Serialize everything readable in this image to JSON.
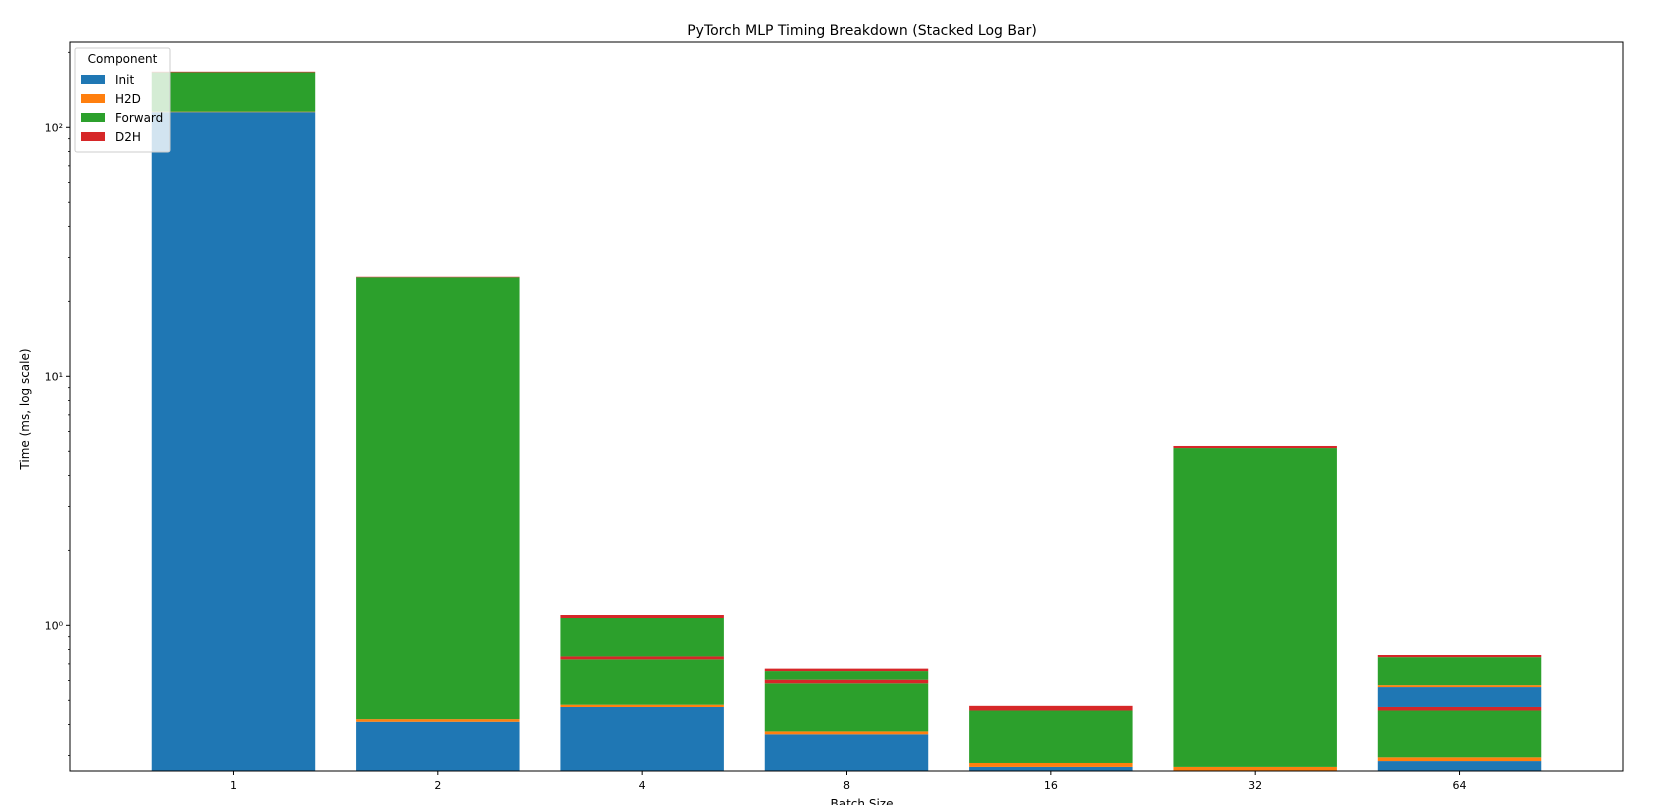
{
  "chart_data": {
    "type": "bar",
    "stacked": true,
    "title": "PyTorch MLP Timing Breakdown (Stacked Log Bar)",
    "xlabel": "Batch Size",
    "ylabel": "Time (ms, log scale)",
    "yscale": "log",
    "ylim": [
      0.26,
      220
    ],
    "yticks": [
      {
        "value": 1,
        "label": "10⁰"
      },
      {
        "value": 10,
        "label": "10¹"
      },
      {
        "value": 100,
        "label": "10²"
      }
    ],
    "categories": [
      "1",
      "2",
      "4",
      "8",
      "16",
      "32",
      "64"
    ],
    "legend": {
      "title": "Component",
      "placement": "top-left"
    },
    "colors": {
      "Init": "#1f77b4",
      "H2D": "#ff7f0e",
      "Forward": "#2ca02c",
      "D2H": "#d62728"
    },
    "bars": [
      {
        "category": "1",
        "segments": [
          {
            "series": "Init",
            "bottom": 0.26,
            "top": 115
          },
          {
            "series": "H2D",
            "bottom": 115,
            "top": 115.5
          },
          {
            "series": "Forward",
            "bottom": 115.5,
            "top": 166
          },
          {
            "series": "D2H",
            "bottom": 166,
            "top": 167
          }
        ]
      },
      {
        "category": "2",
        "segments": [
          {
            "series": "Init",
            "bottom": 0.26,
            "top": 0.41
          },
          {
            "series": "H2D",
            "bottom": 0.41,
            "top": 0.42
          },
          {
            "series": "Forward",
            "bottom": 0.42,
            "top": 25.0
          },
          {
            "series": "D2H",
            "bottom": 25.0,
            "top": 25.1
          }
        ]
      },
      {
        "category": "4",
        "segments": [
          {
            "series": "Init",
            "bottom": 0.26,
            "top": 0.47
          },
          {
            "series": "H2D",
            "bottom": 0.47,
            "top": 0.48
          },
          {
            "series": "Forward",
            "bottom": 0.48,
            "top": 0.73
          },
          {
            "series": "D2H",
            "bottom": 0.73,
            "top": 0.75
          },
          {
            "series": "Forward",
            "bottom": 0.75,
            "top": 1.07
          },
          {
            "series": "D2H",
            "bottom": 1.07,
            "top": 1.1
          }
        ]
      },
      {
        "category": "8",
        "segments": [
          {
            "series": "Init",
            "bottom": 0.26,
            "top": 0.365
          },
          {
            "series": "H2D",
            "bottom": 0.365,
            "top": 0.375
          },
          {
            "series": "Forward",
            "bottom": 0.375,
            "top": 0.585
          },
          {
            "series": "D2H",
            "bottom": 0.585,
            "top": 0.605
          },
          {
            "series": "Forward",
            "bottom": 0.605,
            "top": 0.655
          },
          {
            "series": "D2H",
            "bottom": 0.655,
            "top": 0.67
          }
        ]
      },
      {
        "category": "16",
        "segments": [
          {
            "series": "Init",
            "bottom": 0.26,
            "top": 0.27
          },
          {
            "series": "H2D",
            "bottom": 0.27,
            "top": 0.28
          },
          {
            "series": "Forward",
            "bottom": 0.28,
            "top": 0.455
          },
          {
            "series": "D2H",
            "bottom": 0.455,
            "top": 0.475
          }
        ]
      },
      {
        "category": "32",
        "segments": [
          {
            "series": "H2D",
            "bottom": 0.26,
            "top": 0.27
          },
          {
            "series": "Forward",
            "bottom": 0.27,
            "top": 5.15
          },
          {
            "series": "D2H",
            "bottom": 5.15,
            "top": 5.25
          }
        ]
      },
      {
        "category": "64",
        "segments": [
          {
            "series": "Init",
            "bottom": 0.26,
            "top": 0.285
          },
          {
            "series": "H2D",
            "bottom": 0.285,
            "top": 0.295
          },
          {
            "series": "Forward",
            "bottom": 0.295,
            "top": 0.455
          },
          {
            "series": "D2H",
            "bottom": 0.455,
            "top": 0.47
          },
          {
            "series": "Init",
            "bottom": 0.47,
            "top": 0.565
          },
          {
            "series": "H2D",
            "bottom": 0.565,
            "top": 0.575
          },
          {
            "series": "Forward",
            "bottom": 0.575,
            "top": 0.745
          },
          {
            "series": "D2H",
            "bottom": 0.745,
            "top": 0.76
          }
        ]
      }
    ]
  }
}
